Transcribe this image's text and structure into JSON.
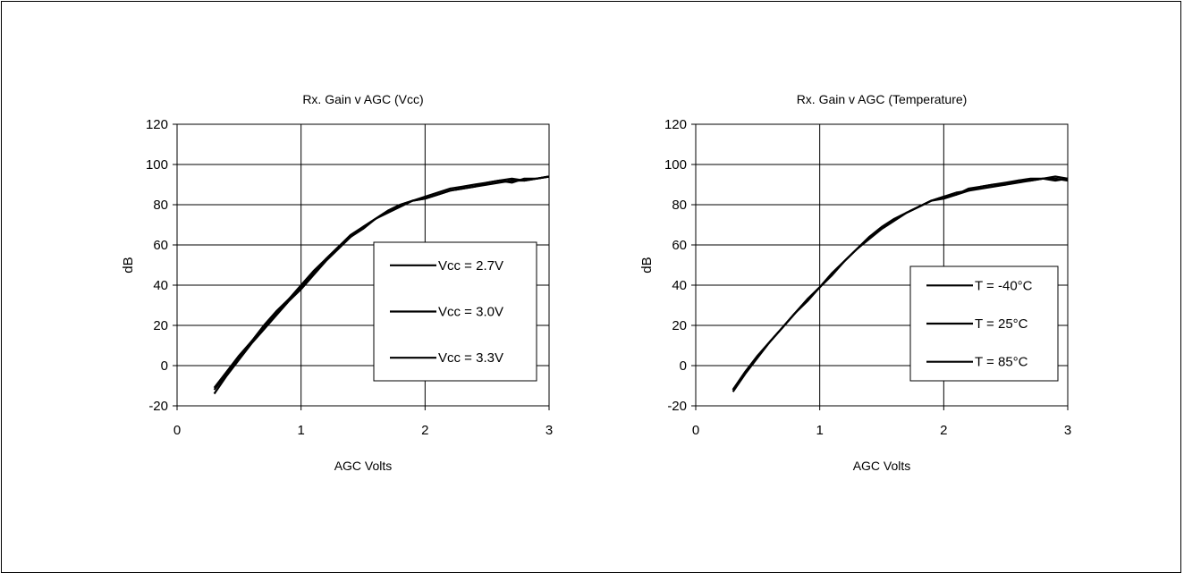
{
  "chart_data": [
    {
      "type": "line",
      "title": "Rx. Gain v AGC (Vcc)",
      "xlabel": "AGC Volts",
      "ylabel": "dB",
      "xlim": [
        0,
        3
      ],
      "ylim": [
        -20,
        120
      ],
      "xticks": [
        "0",
        "1",
        "2",
        "3"
      ],
      "yticks": [
        "-20",
        "0",
        "20",
        "40",
        "60",
        "80",
        "100",
        "120"
      ],
      "grid": true,
      "legend_position": "center-right",
      "series": [
        {
          "name": "Vcc = 2.7V",
          "x": [
            0.3,
            0.4,
            0.5,
            0.6,
            0.7,
            0.8,
            0.9,
            1.0,
            1.1,
            1.2,
            1.3,
            1.4,
            1.5,
            1.6,
            1.7,
            1.8,
            1.9,
            2.0,
            2.1,
            2.2,
            2.3,
            2.4,
            2.5,
            2.6,
            2.7,
            2.8,
            2.9,
            3.0
          ],
          "y": [
            -14,
            -5,
            3,
            11,
            18,
            25,
            32,
            38,
            45,
            52,
            58,
            64,
            68,
            73,
            76,
            79,
            82,
            83,
            85,
            87,
            88,
            89,
            90,
            91,
            92,
            92,
            93,
            94
          ]
        },
        {
          "name": "Vcc = 3.0V",
          "x": [
            0.3,
            0.4,
            0.5,
            0.6,
            0.7,
            0.8,
            0.9,
            1.0,
            1.1,
            1.2,
            1.3,
            1.4,
            1.5,
            1.6,
            1.7,
            1.8,
            1.9,
            2.0,
            2.1,
            2.2,
            2.3,
            2.4,
            2.5,
            2.6,
            2.7,
            2.8,
            2.9,
            3.0
          ],
          "y": [
            -12,
            -4,
            4,
            12,
            19,
            26,
            33,
            39,
            46,
            53,
            59,
            64,
            69,
            73,
            77,
            80,
            82,
            84,
            86,
            88,
            89,
            90,
            91,
            92,
            93,
            92,
            93,
            94
          ]
        },
        {
          "name": "Vcc = 3.3V",
          "x": [
            0.3,
            0.4,
            0.5,
            0.6,
            0.7,
            0.8,
            0.9,
            1.0,
            1.1,
            1.2,
            1.3,
            1.4,
            1.5,
            1.6,
            1.7,
            1.8,
            1.9,
            2.0,
            2.1,
            2.2,
            2.3,
            2.4,
            2.5,
            2.6,
            2.7,
            2.8,
            2.9,
            3.0
          ],
          "y": [
            -11,
            -3,
            5,
            12,
            20,
            27,
            33,
            40,
            47,
            53,
            59,
            65,
            69,
            73,
            77,
            80,
            82,
            83,
            85,
            87,
            88,
            89,
            91,
            92,
            91,
            93,
            93,
            94
          ]
        }
      ]
    },
    {
      "type": "line",
      "title": "Rx. Gain v AGC (Temperature)",
      "xlabel": "AGC Volts",
      "ylabel": "dB",
      "xlim": [
        0,
        3
      ],
      "ylim": [
        -20,
        120
      ],
      "xticks": [
        "0",
        "1",
        "2",
        "3"
      ],
      "yticks": [
        "-20",
        "0",
        "20",
        "40",
        "60",
        "80",
        "100",
        "120"
      ],
      "grid": true,
      "legend_position": "center-right",
      "series": [
        {
          "name": "T = -40°C",
          "x": [
            0.3,
            0.4,
            0.5,
            0.6,
            0.7,
            0.8,
            0.9,
            1.0,
            1.1,
            1.2,
            1.3,
            1.4,
            1.5,
            1.6,
            1.7,
            1.8,
            1.9,
            2.0,
            2.1,
            2.2,
            2.3,
            2.4,
            2.5,
            2.6,
            2.7,
            2.8,
            2.9,
            3.0
          ],
          "y": [
            -13,
            -4,
            4,
            12,
            19,
            26,
            33,
            39,
            46,
            52,
            58,
            63,
            68,
            72,
            76,
            79,
            82,
            84,
            86,
            87,
            88,
            89,
            90,
            91,
            92,
            93,
            92,
            93
          ]
        },
        {
          "name": "T = 25°C",
          "x": [
            0.3,
            0.4,
            0.5,
            0.6,
            0.7,
            0.8,
            0.9,
            1.0,
            1.1,
            1.2,
            1.3,
            1.4,
            1.5,
            1.6,
            1.7,
            1.8,
            1.9,
            2.0,
            2.1,
            2.2,
            2.3,
            2.4,
            2.5,
            2.6,
            2.7,
            2.8,
            2.9,
            3.0
          ],
          "y": [
            -12,
            -3,
            5,
            12,
            19,
            26,
            33,
            39,
            46,
            52,
            58,
            64,
            69,
            73,
            76,
            79,
            82,
            83,
            85,
            87,
            89,
            90,
            91,
            92,
            93,
            93,
            94,
            93
          ]
        },
        {
          "name": "T = 85°C",
          "x": [
            0.3,
            0.4,
            0.5,
            0.6,
            0.7,
            0.8,
            0.9,
            1.0,
            1.1,
            1.2,
            1.3,
            1.4,
            1.5,
            1.6,
            1.7,
            1.8,
            1.9,
            2.0,
            2.1,
            2.2,
            2.3,
            2.4,
            2.5,
            2.6,
            2.7,
            2.8,
            2.9,
            3.0
          ],
          "y": [
            -12,
            -3,
            5,
            12,
            19,
            26,
            32,
            39,
            45,
            52,
            58,
            64,
            68,
            72,
            76,
            79,
            82,
            84,
            85,
            88,
            89,
            90,
            90,
            92,
            92,
            93,
            93,
            92
          ]
        }
      ]
    }
  ]
}
